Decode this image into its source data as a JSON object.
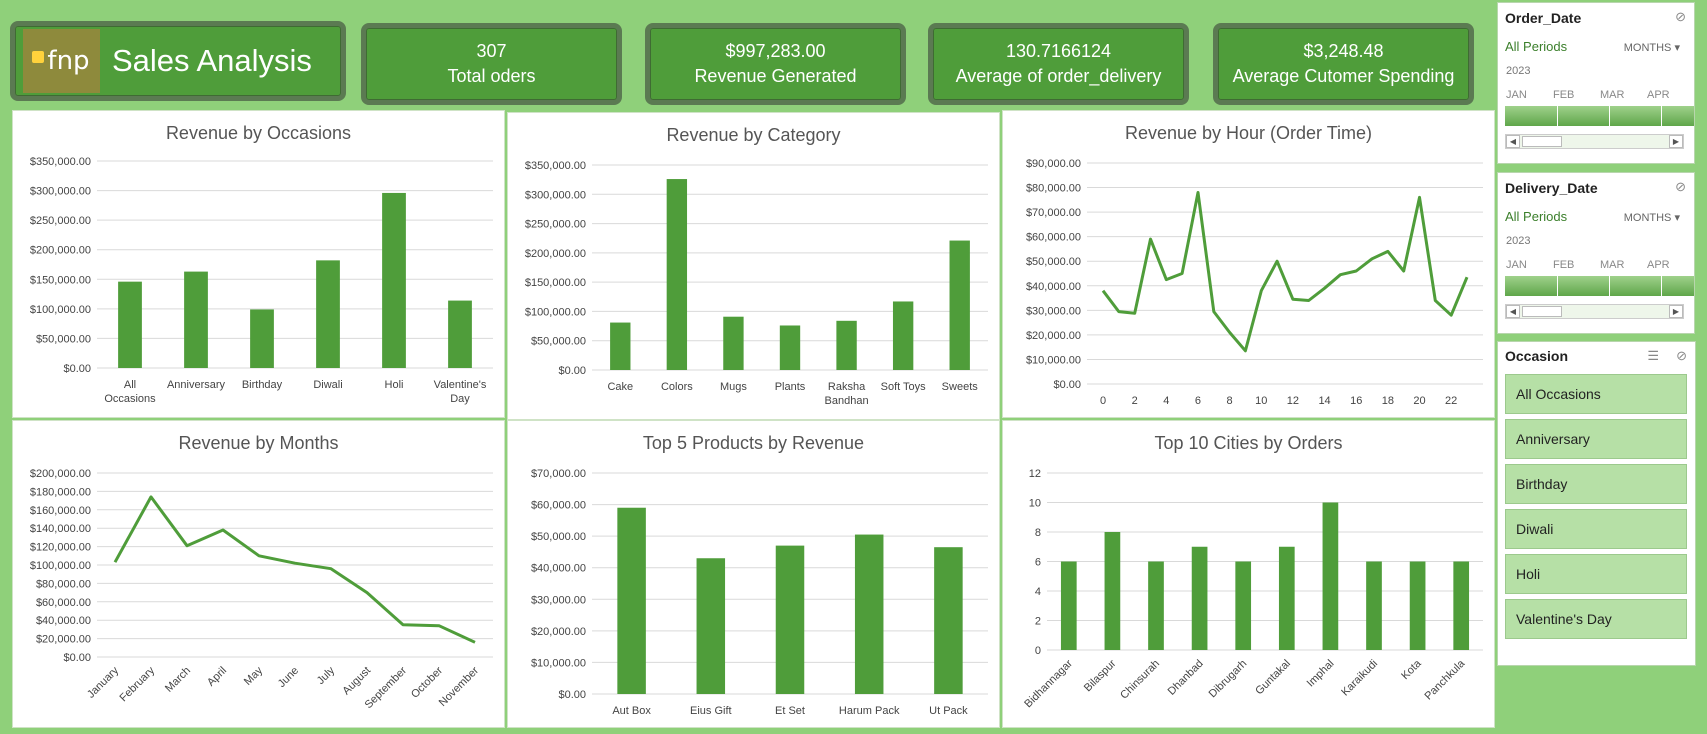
{
  "header": {
    "logo_text": "fnp",
    "title": "Sales Analysis"
  },
  "kpis": [
    {
      "value": "307",
      "label": "Total oders"
    },
    {
      "value": "$997,283.00",
      "label": "Revenue Generated"
    },
    {
      "value": "130.7166124",
      "label": "Average of order_delivery"
    },
    {
      "value": "$3,248.48",
      "label": "Average Cutomer Spending"
    }
  ],
  "colors": {
    "accent": "#4f9d3a",
    "background": "#8fd07a",
    "bar": "#4f9d3a"
  },
  "chart_data": [
    {
      "type": "bar",
      "title": "Revenue by Occasions",
      "categories": [
        "All Occasions",
        "Anniversary",
        "Birthday",
        "Diwali",
        "Holi",
        "Valentine's Day"
      ],
      "category_lines": [
        [
          "All",
          "Occasions"
        ],
        [
          "Anniversary"
        ],
        [
          "Birthday"
        ],
        [
          "Diwali"
        ],
        [
          "Holi"
        ],
        [
          "Valentine's",
          "Day"
        ]
      ],
      "values": [
        146000,
        163000,
        99000,
        182000,
        296000,
        114000
      ],
      "ylim": [
        0,
        350000
      ],
      "yticks": [
        "$0.00",
        "$50,000.00",
        "$100,000.00",
        "$150,000.00",
        "$200,000.00",
        "$250,000.00",
        "$300,000.00",
        "$350,000.00"
      ],
      "grid": true
    },
    {
      "type": "bar",
      "title": "Revenue by Category",
      "categories": [
        "Cake",
        "Colors",
        "Mugs",
        "Plants",
        "Raksha Bandhan",
        "Soft Toys",
        "Sweets"
      ],
      "category_lines": [
        [
          "Cake"
        ],
        [
          "Colors"
        ],
        [
          "Mugs"
        ],
        [
          "Plants"
        ],
        [
          "Raksha",
          "Bandhan"
        ],
        [
          "Soft Toys"
        ],
        [
          "Sweets"
        ]
      ],
      "values": [
        81000,
        326000,
        91000,
        76000,
        84000,
        117000,
        221000
      ],
      "ylim": [
        0,
        350000
      ],
      "yticks": [
        "$0.00",
        "$50,000.00",
        "$100,000.00",
        "$150,000.00",
        "$200,000.00",
        "$250,000.00",
        "$300,000.00",
        "$350,000.00"
      ],
      "grid": true
    },
    {
      "type": "line",
      "title": "Revenue by Hour (Order Time)",
      "x": [
        0,
        1,
        2,
        3,
        4,
        5,
        6,
        7,
        8,
        9,
        10,
        11,
        12,
        13,
        14,
        15,
        16,
        17,
        18,
        19,
        20,
        21,
        22,
        23
      ],
      "values": [
        38000,
        29500,
        28800,
        59000,
        42500,
        45000,
        78000,
        29500,
        21000,
        13500,
        38000,
        50000,
        34500,
        34000,
        39000,
        44500,
        46000,
        51000,
        54000,
        46000,
        76000,
        34000,
        28000,
        43500
      ],
      "xticks": [
        "0",
        "2",
        "4",
        "6",
        "8",
        "10",
        "12",
        "14",
        "16",
        "18",
        "20",
        "22"
      ],
      "ylim": [
        0,
        90000
      ],
      "yticks": [
        "$0.00",
        "$10,000.00",
        "$20,000.00",
        "$30,000.00",
        "$40,000.00",
        "$50,000.00",
        "$60,000.00",
        "$70,000.00",
        "$80,000.00",
        "$90,000.00"
      ],
      "grid": true
    },
    {
      "type": "line",
      "title": "Revenue by Months",
      "categories": [
        "January",
        "February",
        "March",
        "April",
        "May",
        "June",
        "July",
        "August",
        "September",
        "October",
        "November"
      ],
      "values": [
        103000,
        174000,
        121000,
        138000,
        110000,
        102000,
        96000,
        70000,
        35000,
        34000,
        16000
      ],
      "ylim": [
        0,
        200000
      ],
      "yticks": [
        "$0.00",
        "$20,000.00",
        "$40,000.00",
        "$60,000.00",
        "$80,000.00",
        "$100,000.00",
        "$120,000.00",
        "$140,000.00",
        "$160,000.00",
        "$180,000.00",
        "$200,000.00"
      ],
      "grid": true
    },
    {
      "type": "bar",
      "title": "Top 5 Products by Revenue",
      "categories": [
        "Aut Box",
        "Eius Gift",
        "Et Set",
        "Harum Pack",
        "Ut Pack"
      ],
      "category_lines": [
        [
          "Aut Box"
        ],
        [
          "Eius Gift"
        ],
        [
          "Et Set"
        ],
        [
          "Harum Pack"
        ],
        [
          "Ut Pack"
        ]
      ],
      "values": [
        59000,
        43000,
        47000,
        50500,
        46500
      ],
      "ylim": [
        0,
        70000
      ],
      "yticks": [
        "$0.00",
        "$10,000.00",
        "$20,000.00",
        "$30,000.00",
        "$40,000.00",
        "$50,000.00",
        "$60,000.00",
        "$70,000.00"
      ],
      "grid": true
    },
    {
      "type": "bar",
      "title": "Top 10 Cities by Orders",
      "categories": [
        "Bidhannagar",
        "Bilaspur",
        "Chinsurah",
        "Dhanbad",
        "Dibrugarh",
        "Guntakal",
        "Imphal",
        "Karaikudi",
        "Kota",
        "Panchkula"
      ],
      "values": [
        6,
        8,
        6,
        7,
        6,
        7,
        10,
        6,
        6,
        6
      ],
      "ylim": [
        0,
        12
      ],
      "yticks": [
        "0",
        "2",
        "4",
        "6",
        "8",
        "10",
        "12"
      ],
      "grid": true
    }
  ],
  "slicers": {
    "order_date": {
      "title": "Order_Date",
      "all": "All Periods",
      "unit": "MONTHS",
      "year": "2023",
      "months": [
        "JAN",
        "FEB",
        "MAR",
        "APR"
      ]
    },
    "delivery_date": {
      "title": "Delivery_Date",
      "all": "All Periods",
      "unit": "MONTHS",
      "year": "2023",
      "months": [
        "JAN",
        "FEB",
        "MAR",
        "APR"
      ]
    },
    "occasion": {
      "title": "Occasion",
      "items": [
        "All Occasions",
        "Anniversary",
        "Birthday",
        "Diwali",
        "Holi",
        "Valentine's Day"
      ]
    }
  }
}
